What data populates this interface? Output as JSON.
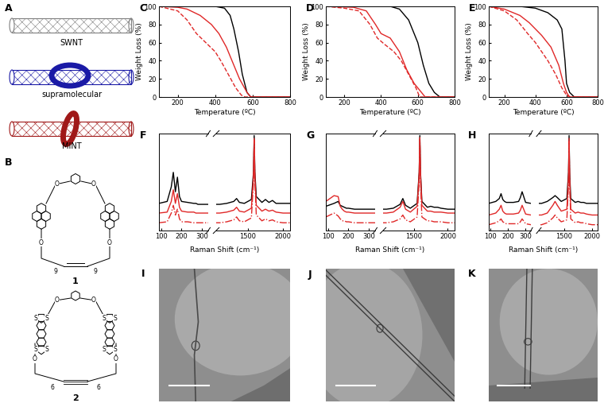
{
  "panel_A": {
    "label": "A",
    "items": [
      {
        "name": "SWNT",
        "color": "#7f7f7f"
      },
      {
        "name": "supramolecular",
        "color": "#1a1aa6"
      },
      {
        "name": "MINT",
        "color": "#a01818"
      }
    ]
  },
  "panel_B": {
    "label": "B",
    "structures": [
      {
        "name": "1",
        "repeat": "9",
        "heteroatom": "O"
      },
      {
        "name": "2",
        "repeat": "6",
        "heteroatom": "O",
        "ring_atom": "S"
      }
    ]
  },
  "chart_data": [
    {
      "label": "C",
      "type": "line",
      "x_label": "Temperature (ºC)",
      "y_label": "Weight Loss (%)",
      "xlim": [
        100,
        800
      ],
      "ylim": [
        0,
        100
      ],
      "xticks": [
        200,
        400,
        600,
        800
      ],
      "yticks": [
        0,
        20,
        40,
        60,
        80,
        100
      ],
      "series": [
        {
          "color": "#000000",
          "line_style": "solid",
          "x": [
            100,
            300,
            400,
            450,
            480,
            500,
            525,
            545,
            570,
            590,
            800
          ],
          "values": [
            100,
            100,
            100,
            98,
            90,
            75,
            50,
            25,
            5,
            0,
            0
          ]
        },
        {
          "color": "#e02828",
          "line_style": "solid",
          "x": [
            100,
            200,
            250,
            320,
            380,
            420,
            460,
            490,
            530,
            570,
            590,
            800
          ],
          "values": [
            100,
            99,
            97,
            90,
            80,
            70,
            55,
            40,
            20,
            5,
            0,
            0
          ]
        },
        {
          "color": "#e02828",
          "line_style": "dashed",
          "x": [
            100,
            200,
            250,
            300,
            350,
            400,
            430,
            470,
            510,
            540,
            560,
            800
          ],
          "values": [
            100,
            95,
            85,
            70,
            60,
            50,
            40,
            25,
            10,
            2,
            0,
            0
          ]
        }
      ]
    },
    {
      "label": "D",
      "type": "line",
      "x_label": "Temperature (ºC)",
      "y_label": "Weight Loss (%)",
      "xlim": [
        100,
        800
      ],
      "ylim": [
        0,
        100
      ],
      "xticks": [
        200,
        400,
        600,
        800
      ],
      "yticks": [
        0,
        20,
        40,
        60,
        80,
        100
      ],
      "series": [
        {
          "color": "#000000",
          "line_style": "solid",
          "x": [
            100,
            450,
            500,
            550,
            600,
            630,
            660,
            690,
            720,
            800
          ],
          "values": [
            100,
            100,
            97,
            85,
            60,
            35,
            15,
            5,
            0,
            0
          ]
        },
        {
          "color": "#e02828",
          "line_style": "solid",
          "x": [
            100,
            250,
            320,
            370,
            400,
            450,
            500,
            540,
            580,
            620,
            640,
            800
          ],
          "values": [
            100,
            99,
            95,
            80,
            70,
            65,
            50,
            30,
            15,
            5,
            0,
            0
          ]
        },
        {
          "color": "#e02828",
          "line_style": "dashed",
          "x": [
            100,
            200,
            280,
            340,
            380,
            420,
            470,
            510,
            550,
            590,
            610,
            800
          ],
          "values": [
            100,
            98,
            95,
            80,
            65,
            58,
            50,
            40,
            25,
            10,
            0,
            0
          ]
        }
      ]
    },
    {
      "label": "E",
      "type": "line",
      "x_label": "Temperature (ºC)",
      "y_label": "Weight Loss (%)",
      "xlim": [
        100,
        800
      ],
      "ylim": [
        0,
        100
      ],
      "xticks": [
        200,
        400,
        600,
        800
      ],
      "yticks": [
        0,
        20,
        40,
        60,
        80,
        100
      ],
      "series": [
        {
          "color": "#000000",
          "line_style": "solid",
          "x": [
            100,
            300,
            400,
            480,
            540,
            570,
            590,
            600,
            620,
            650,
            800
          ],
          "values": [
            100,
            100,
            98,
            93,
            85,
            75,
            40,
            15,
            5,
            0,
            0
          ]
        },
        {
          "color": "#e02828",
          "line_style": "solid",
          "x": [
            100,
            200,
            300,
            360,
            400,
            440,
            500,
            550,
            580,
            600,
            620,
            800
          ],
          "values": [
            100,
            97,
            90,
            82,
            75,
            68,
            55,
            35,
            15,
            5,
            0,
            0
          ]
        },
        {
          "color": "#e02828",
          "line_style": "dashed",
          "x": [
            100,
            200,
            280,
            350,
            400,
            440,
            480,
            530,
            570,
            600,
            620,
            800
          ],
          "values": [
            100,
            95,
            85,
            70,
            60,
            50,
            40,
            25,
            10,
            2,
            0,
            0
          ]
        }
      ]
    },
    {
      "label": "F",
      "type": "line",
      "x_label": "Raman Shift (cm⁻¹)",
      "tick_labels": "x",
      "xlim": [
        [
          90,
          330
        ],
        [
          1050,
          2100
        ]
      ],
      "ylim": [
        0,
        100
      ],
      "xticks": [
        100,
        200,
        300,
        1500,
        2000
      ],
      "x": [
        90,
        130,
        150,
        160,
        170,
        180,
        190,
        200,
        230,
        260,
        270,
        280,
        300,
        330,
        1100,
        1200,
        1300,
        1340,
        1380,
        1450,
        1550,
        1580,
        1590,
        1600,
        1620,
        1700,
        1750,
        1800,
        1850,
        1900,
        2000,
        2100
      ],
      "series": [
        {
          "color": "#000000",
          "line_style": "solid",
          "values": [
            28,
            30,
            45,
            60,
            40,
            55,
            35,
            30,
            29,
            28,
            28,
            27,
            27,
            27,
            27,
            28,
            30,
            33,
            29,
            28,
            32,
            60,
            98,
            60,
            35,
            29,
            32,
            29,
            31,
            28,
            28,
            28
          ]
        },
        {
          "color": "#e02828",
          "line_style": "solid",
          "values": [
            18,
            19,
            30,
            42,
            28,
            38,
            24,
            20,
            19,
            19,
            18,
            18,
            18,
            18,
            18,
            19,
            21,
            24,
            20,
            19,
            23,
            55,
            95,
            55,
            26,
            20,
            22,
            20,
            21,
            19,
            18,
            18
          ]
        },
        {
          "color": "#e02828",
          "line_style": "dashdot",
          "values": [
            8,
            9,
            18,
            26,
            16,
            22,
            12,
            9,
            9,
            8,
            8,
            8,
            8,
            8,
            8,
            9,
            11,
            14,
            10,
            9,
            13,
            50,
            93,
            50,
            16,
            10,
            12,
            10,
            11,
            9,
            8,
            8
          ]
        }
      ]
    },
    {
      "label": "G",
      "type": "line",
      "x_label": "Raman Shift (cm⁻¹)",
      "tick_labels": "x",
      "xlim": [
        [
          90,
          330
        ],
        [
          1050,
          2100
        ]
      ],
      "ylim": [
        0,
        100
      ],
      "xticks": [
        100,
        200,
        300,
        1500,
        2000
      ],
      "x": [
        90,
        130,
        150,
        160,
        170,
        180,
        190,
        200,
        230,
        260,
        270,
        280,
        300,
        330,
        1100,
        1200,
        1300,
        1340,
        1380,
        1450,
        1550,
        1580,
        1590,
        1600,
        1620,
        1700,
        1750,
        1800,
        1850,
        1900,
        2000,
        2100
      ],
      "series": [
        {
          "color": "#000000",
          "line_style": "solid",
          "values": [
            25,
            28,
            30,
            26,
            25,
            24,
            23,
            23,
            22,
            22,
            22,
            22,
            22,
            22,
            22,
            23,
            27,
            33,
            26,
            23,
            28,
            60,
            98,
            60,
            30,
            24,
            25,
            24,
            24,
            23,
            22,
            22
          ]
        },
        {
          "color": "#e02828",
          "line_style": "solid",
          "values": [
            30,
            36,
            35,
            25,
            22,
            20,
            19,
            19,
            18,
            18,
            18,
            18,
            18,
            18,
            18,
            19,
            24,
            30,
            22,
            19,
            25,
            58,
            96,
            58,
            26,
            20,
            20,
            19,
            19,
            19,
            18,
            18
          ]
        },
        {
          "color": "#e02828",
          "line_style": "dashdot",
          "values": [
            14,
            18,
            15,
            12,
            10,
            10,
            9,
            9,
            8,
            8,
            8,
            8,
            8,
            8,
            8,
            9,
            12,
            16,
            11,
            9,
            14,
            50,
            94,
            50,
            14,
            10,
            10,
            9,
            9,
            9,
            8,
            8
          ]
        }
      ]
    },
    {
      "label": "H",
      "type": "line",
      "x_label": "Raman Shift (cm⁻¹)",
      "tick_labels": "x",
      "xlim": [
        [
          90,
          330
        ],
        [
          1050,
          2100
        ]
      ],
      "ylim": [
        0,
        100
      ],
      "xticks": [
        100,
        200,
        300,
        1500,
        2000
      ],
      "x": [
        90,
        130,
        150,
        160,
        170,
        180,
        190,
        200,
        230,
        260,
        270,
        280,
        300,
        330,
        1100,
        1200,
        1300,
        1340,
        1380,
        1450,
        1550,
        1580,
        1590,
        1600,
        1620,
        1700,
        1750,
        1800,
        1850,
        1900,
        2000,
        2100
      ],
      "series": [
        {
          "color": "#000000",
          "line_style": "solid",
          "values": [
            28,
            30,
            33,
            38,
            32,
            30,
            29,
            29,
            29,
            30,
            34,
            40,
            29,
            28,
            28,
            30,
            34,
            36,
            34,
            30,
            33,
            60,
            98,
            60,
            33,
            29,
            30,
            29,
            29,
            28,
            28,
            28
          ]
        },
        {
          "color": "#e02828",
          "line_style": "solid",
          "values": [
            16,
            18,
            22,
            26,
            20,
            18,
            17,
            17,
            17,
            18,
            21,
            26,
            17,
            16,
            16,
            18,
            26,
            30,
            26,
            20,
            22,
            55,
            95,
            55,
            22,
            18,
            19,
            18,
            18,
            17,
            16,
            16
          ]
        },
        {
          "color": "#e02828",
          "line_style": "dashdot",
          "values": [
            6,
            8,
            10,
            12,
            9,
            8,
            7,
            7,
            7,
            7,
            9,
            12,
            7,
            6,
            6,
            8,
            13,
            16,
            13,
            9,
            11,
            48,
            93,
            48,
            12,
            8,
            9,
            8,
            8,
            7,
            6,
            6
          ]
        }
      ]
    }
  ],
  "images": [
    {
      "label": "I"
    },
    {
      "label": "J"
    },
    {
      "label": "K"
    }
  ]
}
